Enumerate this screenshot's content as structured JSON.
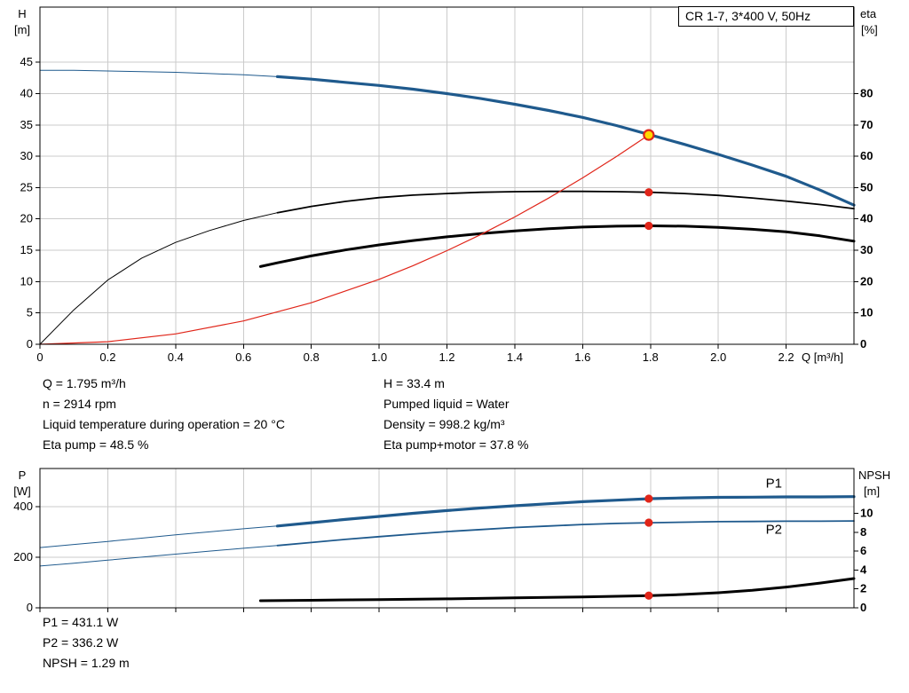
{
  "title_box": "CR 1-7, 3*400 V, 50Hz",
  "colors": {
    "blue": "#1f5a8d",
    "red": "#e02519",
    "duty_fill": "#ffd800",
    "grid": "#cbcbcb",
    "black": "#000000"
  },
  "labels": {
    "h_axis": "H",
    "h_unit": "[m]",
    "eta_axis": "eta",
    "eta_unit": "[%]",
    "q_axis": "Q [m³/h]",
    "p_axis": "P",
    "p_unit": "[W]",
    "npsh_axis": "NPSH",
    "npsh_unit": "[m]"
  },
  "info": {
    "left": [
      "Q = 1.795 m³/h",
      "n = 2914 rpm",
      "Liquid temperature during operation = 20 °C",
      "Eta pump = 48.5 %"
    ],
    "right": [
      "H = 33.4 m",
      "Pumped liquid = Water",
      "Density = 998.2 kg/m³",
      "Eta pump+motor = 37.8 %"
    ]
  },
  "footer": [
    "P1 = 431.1 W",
    "P2 = 336.2 W",
    "NPSH = 1.29 m"
  ],
  "chart_data": [
    {
      "type": "line",
      "title": "CR 1-7, 3*400 V, 50Hz",
      "xlabel": "Q [m³/h]",
      "ylabel_left": "H [m]",
      "ylabel_right": "eta [%]",
      "xlim": [
        0,
        2.4
      ],
      "ylim_left": [
        0,
        53.8
      ],
      "ylim_right": [
        0,
        107.6
      ],
      "x_ticks": [
        "0",
        "0.2",
        "0.4",
        "0.6",
        "0.8",
        "1.0",
        "1.2",
        "1.4",
        "1.6",
        "1.8",
        "2.0",
        "2.2"
      ],
      "left_ticks": [
        0,
        5,
        10,
        15,
        20,
        25,
        30,
        35,
        40,
        45
      ],
      "right_ticks": [
        0,
        10,
        20,
        30,
        40,
        50,
        60,
        70,
        80
      ],
      "grid": true,
      "series": [
        {
          "name": "QH curve",
          "axis": "left",
          "color": "#1f5a8d",
          "width": 3.2,
          "width_thin": 1,
          "split_at": 0.7,
          "x": [
            0,
            0.1,
            0.2,
            0.3,
            0.4,
            0.5,
            0.6,
            0.7,
            0.8,
            0.9,
            1.0,
            1.1,
            1.2,
            1.3,
            1.4,
            1.5,
            1.6,
            1.7,
            1.8,
            1.9,
            2.0,
            2.1,
            2.2,
            2.3,
            2.4
          ],
          "values": [
            43.7,
            43.7,
            43.6,
            43.5,
            43.4,
            43.2,
            43.0,
            42.7,
            42.3,
            41.8,
            41.3,
            40.7,
            40.0,
            39.2,
            38.3,
            37.3,
            36.2,
            34.9,
            33.4,
            31.9,
            30.3,
            28.6,
            26.8,
            24.6,
            22.2
          ]
        },
        {
          "name": "Eta pump",
          "axis": "right",
          "color": "#000000",
          "width": 1.8,
          "width_thin": 1,
          "split_at": 0.7,
          "x": [
            0,
            0.1,
            0.2,
            0.3,
            0.4,
            0.5,
            0.6,
            0.7,
            0.8,
            0.9,
            1.0,
            1.1,
            1.2,
            1.3,
            1.4,
            1.5,
            1.6,
            1.7,
            1.8,
            1.9,
            2.0,
            2.1,
            2.2,
            2.3,
            2.4
          ],
          "values": [
            0,
            11,
            20.5,
            27.5,
            32.5,
            36.3,
            39.5,
            42.0,
            44.0,
            45.6,
            46.8,
            47.6,
            48.1,
            48.5,
            48.7,
            48.8,
            48.8,
            48.7,
            48.5,
            48.1,
            47.5,
            46.7,
            45.7,
            44.6,
            43.3
          ]
        },
        {
          "name": "Eta pump plus motor",
          "axis": "right",
          "color": "#000000",
          "width": 3,
          "x": [
            0.65,
            0.7,
            0.8,
            0.9,
            1.0,
            1.1,
            1.2,
            1.3,
            1.4,
            1.5,
            1.6,
            1.7,
            1.8,
            1.9,
            2.0,
            2.1,
            2.2,
            2.3,
            2.4
          ],
          "values": [
            24.8,
            26.0,
            28.2,
            30.1,
            31.7,
            33.1,
            34.3,
            35.3,
            36.2,
            36.9,
            37.4,
            37.7,
            37.8,
            37.7,
            37.3,
            36.7,
            35.9,
            34.6,
            32.9
          ]
        },
        {
          "name": "System curve",
          "axis": "left",
          "color": "#e02519",
          "width": 1.2,
          "x": [
            0,
            0.2,
            0.4,
            0.6,
            0.8,
            1.0,
            1.1,
            1.2,
            1.3,
            1.4,
            1.5,
            1.6,
            1.7,
            1.795
          ],
          "values": [
            0,
            0.41,
            1.66,
            3.73,
            6.63,
            10.37,
            12.54,
            14.93,
            17.52,
            20.32,
            23.33,
            26.54,
            29.96,
            33.4
          ]
        }
      ],
      "markers": [
        {
          "x": 1.795,
          "y": 33.4,
          "axis": "left",
          "style": "duty"
        },
        {
          "x": 1.795,
          "y": 48.5,
          "axis": "right",
          "style": "dot"
        },
        {
          "x": 1.795,
          "y": 37.8,
          "axis": "right",
          "style": "dot"
        }
      ],
      "curve_labels": []
    },
    {
      "type": "line",
      "title": "",
      "xlabel": "Q [m³/h]",
      "ylabel_left": "P [W]",
      "ylabel_right": "NPSH [m]",
      "xlim": [
        0,
        2.4
      ],
      "ylim_left": [
        0,
        550
      ],
      "ylim_right": [
        0,
        14.75
      ],
      "x_ticks": [
        "0",
        "0.2",
        "0.4",
        "0.6",
        "0.8",
        "1.0",
        "1.2",
        "1.4",
        "1.6",
        "1.8",
        "2.0",
        "2.2"
      ],
      "left_ticks": [
        0,
        200,
        400
      ],
      "right_ticks": [
        0,
        2,
        4,
        6,
        8,
        10
      ],
      "grid": true,
      "series": [
        {
          "name": "P1",
          "axis": "left",
          "color": "#1f5a8d",
          "width": 3.2,
          "width_thin": 1,
          "split_at": 0.7,
          "x": [
            0,
            0.1,
            0.2,
            0.3,
            0.4,
            0.5,
            0.6,
            0.7,
            0.8,
            0.9,
            1.0,
            1.1,
            1.2,
            1.3,
            1.4,
            1.5,
            1.6,
            1.7,
            1.8,
            1.9,
            2.0,
            2.1,
            2.2,
            2.3,
            2.4
          ],
          "values": [
            238,
            250,
            262,
            275,
            288,
            300,
            312,
            323,
            336,
            349,
            361,
            373,
            384,
            394,
            403,
            411,
            419,
            425,
            431,
            434,
            436,
            437,
            438,
            438,
            439
          ]
        },
        {
          "name": "P2",
          "axis": "left",
          "color": "#1f5a8d",
          "width": 1.8,
          "width_thin": 1,
          "split_at": 0.7,
          "x": [
            0,
            0.1,
            0.2,
            0.3,
            0.4,
            0.5,
            0.6,
            0.7,
            0.8,
            0.9,
            1.0,
            1.1,
            1.2,
            1.3,
            1.4,
            1.5,
            1.6,
            1.7,
            1.8,
            1.9,
            2.0,
            2.1,
            2.2,
            2.3,
            2.4
          ],
          "values": [
            165,
            176,
            188,
            200,
            212,
            224,
            235,
            246,
            258,
            270,
            281,
            291,
            301,
            309,
            317,
            323,
            329,
            333,
            336,
            338,
            340,
            341,
            342,
            342,
            343
          ]
        },
        {
          "name": "NPSH",
          "axis": "right",
          "color": "#000000",
          "width": 3,
          "x": [
            0.65,
            0.8,
            1.0,
            1.2,
            1.4,
            1.6,
            1.8,
            1.9,
            2.0,
            2.1,
            2.2,
            2.3,
            2.4
          ],
          "values": [
            0.75,
            0.8,
            0.87,
            0.95,
            1.05,
            1.16,
            1.29,
            1.42,
            1.6,
            1.85,
            2.2,
            2.62,
            3.1
          ]
        }
      ],
      "markers": [
        {
          "x": 1.795,
          "y": 431.1,
          "axis": "left",
          "style": "dot"
        },
        {
          "x": 1.795,
          "y": 336.2,
          "axis": "left",
          "style": "dot"
        },
        {
          "x": 1.795,
          "y": 1.29,
          "axis": "right",
          "style": "dot"
        }
      ],
      "curve_labels": [
        {
          "text": "P1",
          "x": 2.14,
          "y": 474,
          "axis": "left"
        },
        {
          "text": "P2",
          "x": 2.14,
          "y": 292,
          "axis": "left"
        }
      ]
    }
  ]
}
